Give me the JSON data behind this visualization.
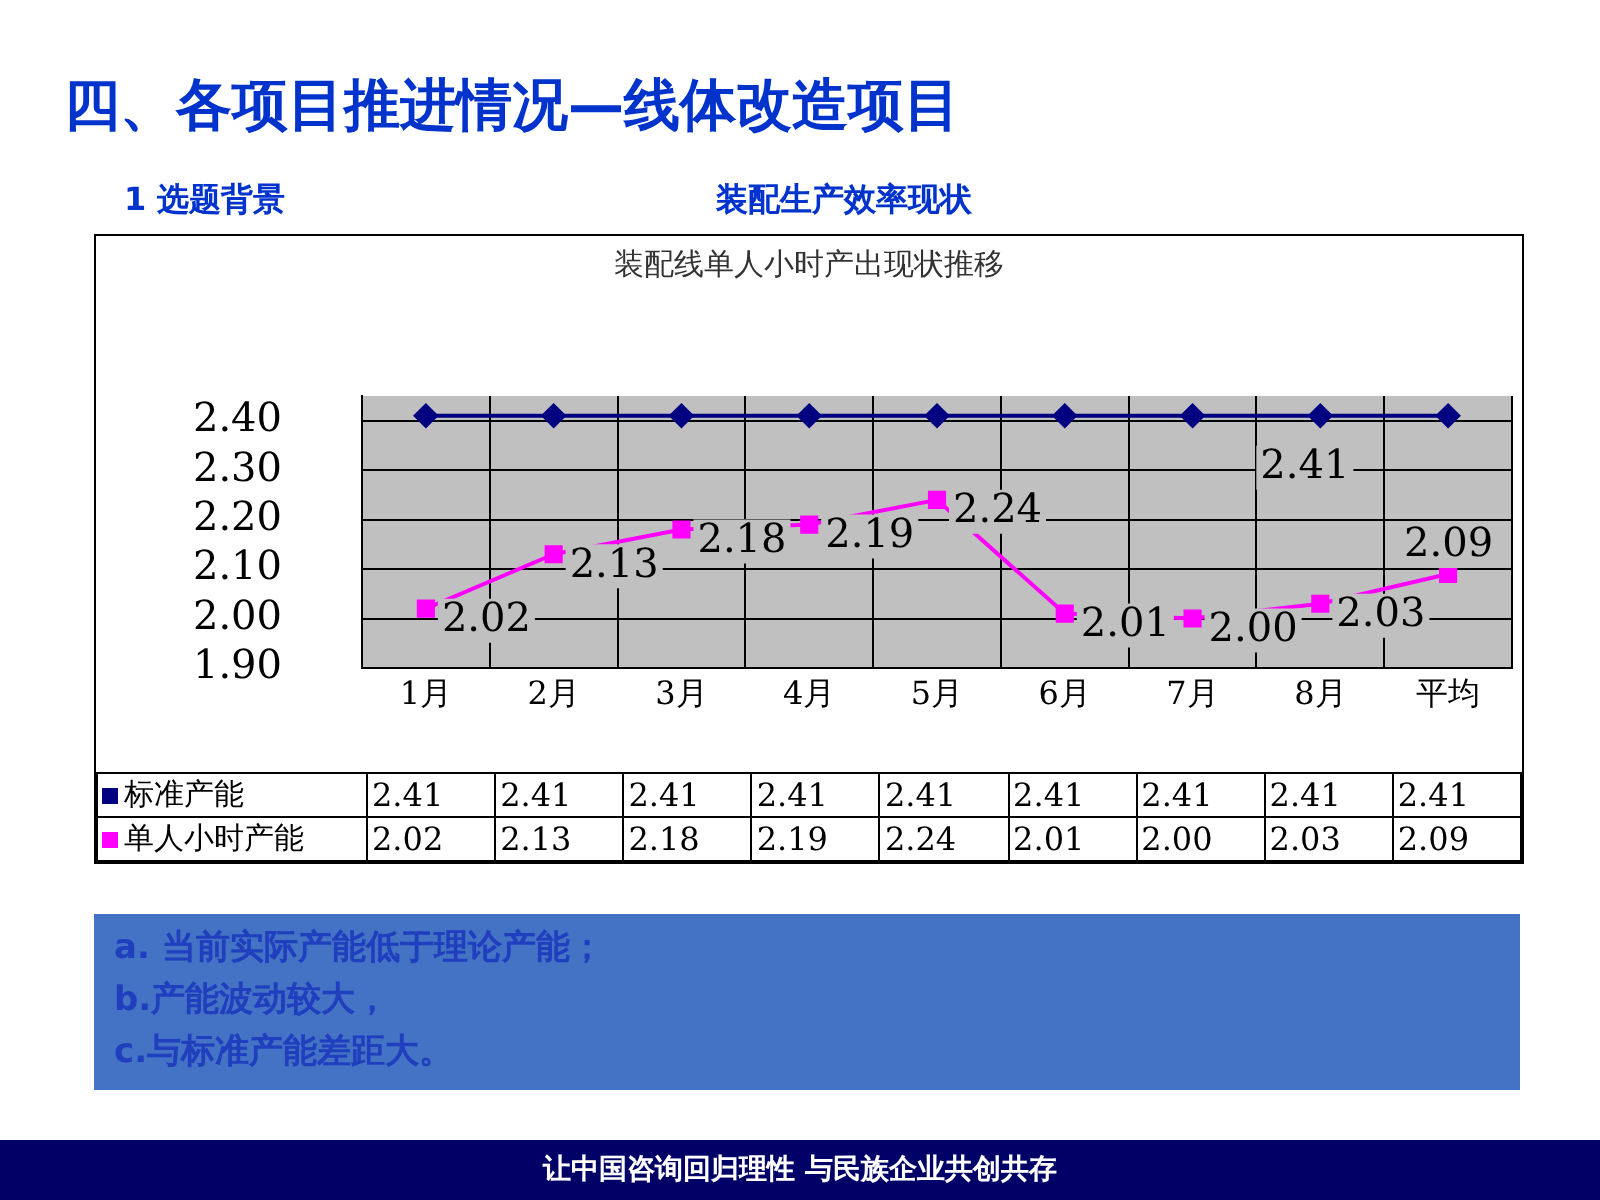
{
  "chart_data": {
    "type": "line",
    "title": "四、各项目推进情况—线体改造项目",
    "subtitle": "装配生产效率现状",
    "annotations": [
      "1 选题背景",
      "装配线单人小时产出现状推移",
      "a. 当前实际产能低于理论产能；",
      "b.产能波动较大，",
      "c.与标准产能差距大。",
      "让中国咨询回归理性 与民族企业共创共存",
      {
        "text": "2.41",
        "x": "8月",
        "y": 2.41
      }
    ],
    "categories": [
      "1月",
      "2月",
      "3月",
      "4月",
      "5月",
      "6月",
      "7月",
      "8月",
      "平均"
    ],
    "series": [
      {
        "name": "标准产能",
        "color": "#000080",
        "marker": "diamond",
        "values": [
          2.41,
          2.41,
          2.41,
          2.41,
          2.41,
          2.41,
          2.41,
          2.41,
          2.41
        ],
        "value_labels": [
          "2.41",
          "2.41",
          "2.41",
          "2.41",
          "2.41",
          "2.41",
          "2.41",
          "2.41",
          "2.41"
        ]
      },
      {
        "name": "单人小时产能",
        "color": "#ff00ff",
        "marker": "square",
        "values": [
          2.02,
          2.13,
          2.18,
          2.19,
          2.24,
          2.01,
          2.0,
          2.03,
          2.09
        ],
        "value_labels": [
          "2.02",
          "2.13",
          "2.18",
          "2.19",
          "2.24",
          "2.01",
          "2.00",
          "2.03",
          "2.09"
        ]
      }
    ],
    "ylim": [
      1.9,
      2.45
    ],
    "yticks": [
      {
        "value": 1.9,
        "label": "1.90"
      },
      {
        "value": 2.0,
        "label": "2.00"
      },
      {
        "value": 2.1,
        "label": "2.10"
      },
      {
        "value": 2.2,
        "label": "2.20"
      },
      {
        "value": 2.3,
        "label": "2.30"
      },
      {
        "value": 2.4,
        "label": "2.40"
      }
    ],
    "grid": true,
    "legend": "bottom",
    "data_labels": true
  }
}
